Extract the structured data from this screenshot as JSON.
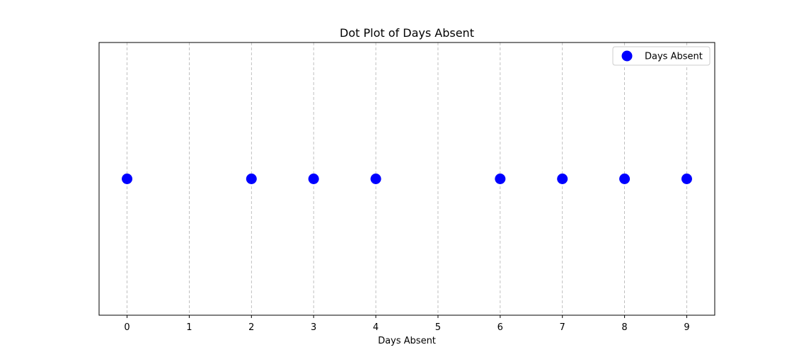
{
  "chart_data": {
    "type": "scatter",
    "title": "Dot Plot of Days Absent",
    "xlabel": "Days Absent",
    "ylabel": "",
    "xlim": [
      -0.45,
      9.45
    ],
    "ylim": [
      -1.1,
      1.1
    ],
    "xticks": [
      0,
      1,
      2,
      3,
      4,
      5,
      6,
      7,
      8,
      9
    ],
    "grid": "x-dashed",
    "legend_position": "top-right",
    "series": [
      {
        "name": "Days Absent",
        "color": "#0000ff",
        "points": [
          {
            "x": 0,
            "y": 0
          },
          {
            "x": 2,
            "y": 0
          },
          {
            "x": 3,
            "y": 0
          },
          {
            "x": 4,
            "y": 0
          },
          {
            "x": 6,
            "y": 0
          },
          {
            "x": 7,
            "y": 0
          },
          {
            "x": 8,
            "y": 0
          },
          {
            "x": 9,
            "y": 0
          }
        ]
      }
    ]
  }
}
